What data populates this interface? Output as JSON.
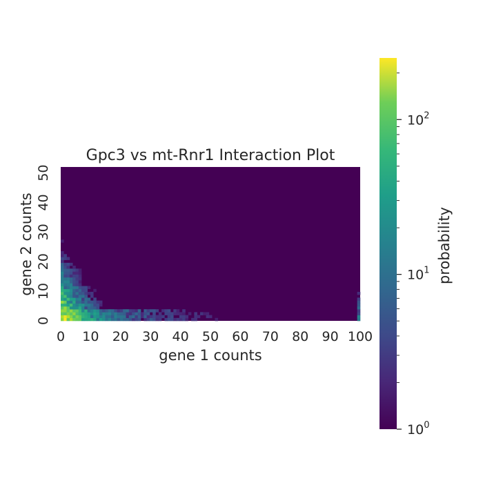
{
  "chart_data": {
    "type": "heatmap",
    "title": "Gpc3 vs mt-Rnr1 Interaction Plot",
    "xlabel": "gene 1 counts",
    "ylabel": "gene 2 counts",
    "xlim": [
      0,
      100
    ],
    "ylim": [
      0,
      52
    ],
    "x_ticks": [
      "0",
      "10",
      "20",
      "30",
      "40",
      "50",
      "60",
      "70",
      "80",
      "90",
      "100"
    ],
    "y_ticks": [
      "0",
      "10",
      "20",
      "30",
      "40",
      "50"
    ],
    "colorbar": {
      "label": "probability",
      "scale": "log",
      "range": [
        1,
        250
      ],
      "colormap": "viridis",
      "ticks": [
        {
          "value": 1,
          "base": "10",
          "exp": "0"
        },
        {
          "value": 10,
          "base": "10",
          "exp": "1"
        },
        {
          "value": 100,
          "base": "10",
          "exp": "2"
        }
      ]
    },
    "grid": false,
    "background_value": 1,
    "max_value": 250,
    "density_description": "peak near gene1 0-3, gene2 0-6; decays along both axes; sparse tail along gene2 0-3 up to gene1 100; accumulation column at gene1 = 100"
  }
}
